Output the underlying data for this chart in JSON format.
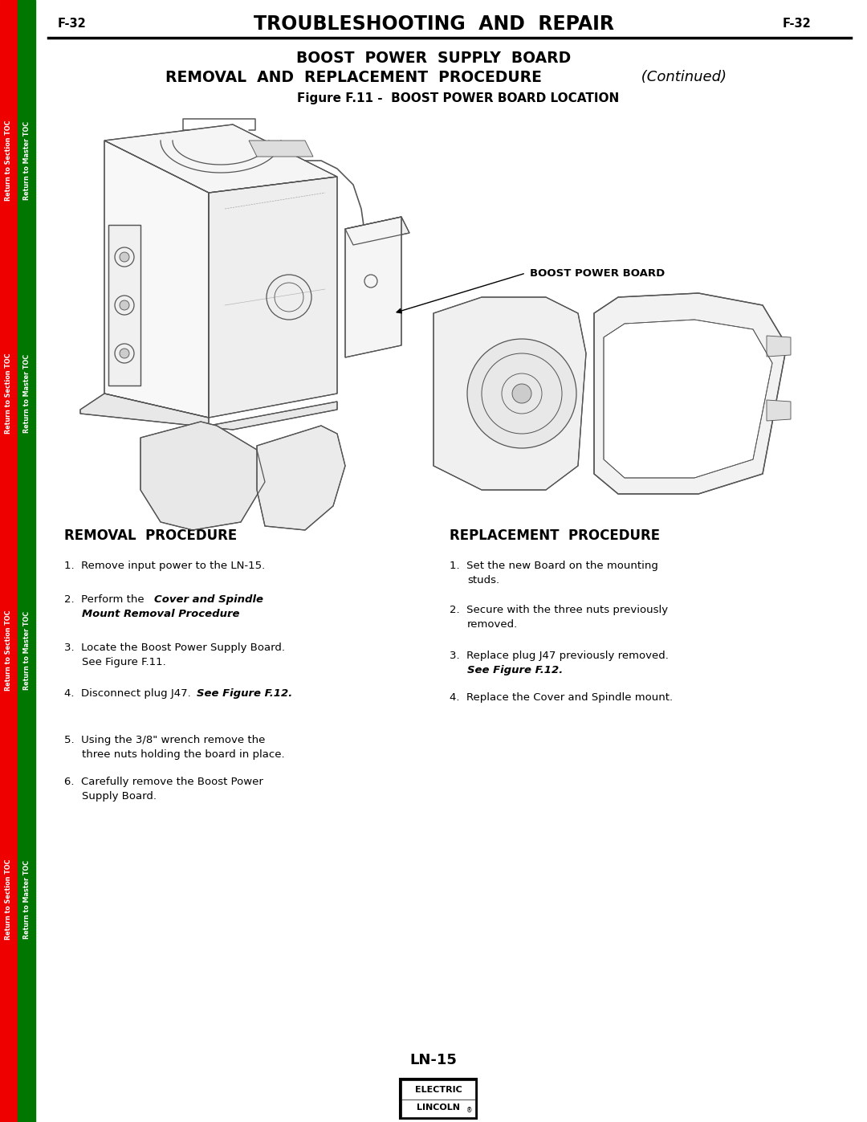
{
  "page_number": "F-32",
  "header_title": "TROUBLESHOOTING  AND  REPAIR",
  "section_line1": "BOOST  POWER  SUPPLY  BOARD",
  "section_line2": "REMOVAL  AND  REPLACEMENT  PROCEDURE",
  "section_italic": " (Continued)",
  "figure_title": "Figure F.11 -  BOOST POWER BOARD LOCATION",
  "boost_label": "BOOST POWER BOARD",
  "removal_head": "REMOVAL  PROCEDURE",
  "replacement_head": "REPLACEMENT  PROCEDURE",
  "footer_model": "LN-15",
  "bg_color": "#FFFFFF",
  "text_color": "#000000",
  "red_bar_color": "#EE0000",
  "green_bar_color": "#007700",
  "sidebar_left_text": "Return to Section TOC",
  "sidebar_right_text": "Return to Master TOC",
  "draw_color": "#555555",
  "draw_lw": 0.9
}
